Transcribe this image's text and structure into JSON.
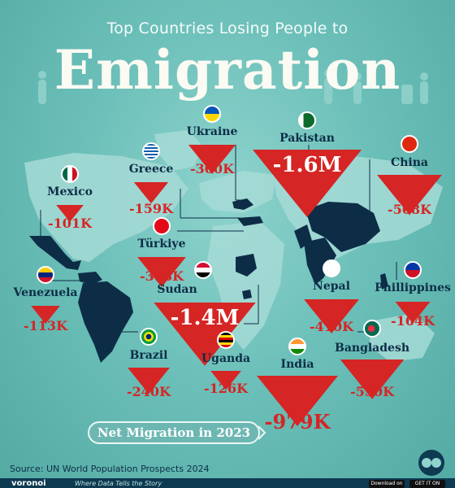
{
  "header": {
    "subtitle": "Top Countries Losing People to",
    "title": "Emigration"
  },
  "chart_data": {
    "type": "map",
    "countries": [
      {
        "name": "Pakistan",
        "value": -1600000,
        "display": "-1.6M",
        "flag": "pakistan-flag"
      },
      {
        "name": "Sudan",
        "value": -1400000,
        "display": "-1.4M",
        "flag": "sudan-flag"
      },
      {
        "name": "India",
        "value": -979000,
        "display": "-979K",
        "flag": "india-flag"
      },
      {
        "name": "China",
        "value": -568000,
        "display": "-568K",
        "flag": "china-flag"
      },
      {
        "name": "Bangladesh",
        "value": -550000,
        "display": "-550K",
        "flag": "bangladesh-flag"
      },
      {
        "name": "Nepal",
        "value": -410000,
        "display": "-410K",
        "flag": "nepal-flag"
      },
      {
        "name": "Türkiye",
        "value": -318000,
        "display": "-318K",
        "flag": "turkiye-flag"
      },
      {
        "name": "Ukraine",
        "value": -300000,
        "display": "-300K",
        "flag": "ukraine-flag"
      },
      {
        "name": "Brazil",
        "value": -240000,
        "display": "-240K",
        "flag": "brazil-flag"
      },
      {
        "name": "Phillippines",
        "value": -164000,
        "display": "-164K",
        "flag": "philippines-flag"
      },
      {
        "name": "Greece",
        "value": -159000,
        "display": "-159K",
        "flag": "greece-flag"
      },
      {
        "name": "Uganda",
        "value": -126000,
        "display": "-126K",
        "flag": "uganda-flag"
      },
      {
        "name": "Venezuela",
        "value": -113000,
        "display": "-113K",
        "flag": "venezuela-flag"
      },
      {
        "name": "Mexico",
        "value": -101000,
        "display": "-101K",
        "flag": "mexico-flag"
      }
    ],
    "legend_label": "Net Migration in 2023",
    "colors": {
      "triangle": "#d52524",
      "highlight_country": "#0d2d47",
      "land": "#9fd6d1"
    }
  },
  "footer": {
    "source": "Source: UN World Population Prospects 2024",
    "brand": "voronoi",
    "tagline": "Where Data Tells the Story",
    "store1": "Download on the App Store",
    "store2": "GET IT ON Google Play"
  }
}
